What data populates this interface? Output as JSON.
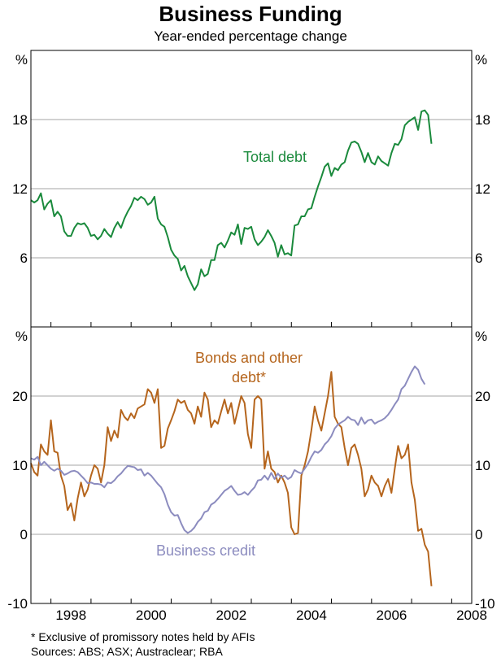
{
  "chart_data": {
    "type": "line",
    "title": "Business Funding",
    "subtitle": "Year-ended percentage change",
    "unit_label": "%",
    "x_ticks": [
      "1998",
      "2000",
      "2002",
      "2004",
      "2006",
      "2008"
    ],
    "colors": {
      "total_debt": "#1a8a3c",
      "bonds": "#b5651d",
      "business_credit": "#8c8cbf",
      "grid": "#a6a6a6",
      "axis": "#000000"
    },
    "panels": [
      {
        "name": "top",
        "ylim": [
          0,
          24
        ],
        "yticks": [
          6,
          12,
          18
        ],
        "series": [
          {
            "name": "Total debt",
            "key": "total_debt",
            "x_start": 1997.5,
            "step": 0.0833,
            "values": [
              11.0,
              10.8,
              11.0,
              11.6,
              10.2,
              10.7,
              11.0,
              9.6,
              10.0,
              9.6,
              8.3,
              7.9,
              7.9,
              8.6,
              9.0,
              8.9,
              9.0,
              8.6,
              7.9,
              8.0,
              7.6,
              7.9,
              8.5,
              8.1,
              7.8,
              8.6,
              9.1,
              8.6,
              9.4,
              10.0,
              10.5,
              11.2,
              11.0,
              11.3,
              11.1,
              10.6,
              10.8,
              11.3,
              9.4,
              8.9,
              8.7,
              7.8,
              6.7,
              6.2,
              5.9,
              4.9,
              5.3,
              4.4,
              3.8,
              3.2,
              3.7,
              5.0,
              4.4,
              4.6,
              5.8,
              5.8,
              7.1,
              7.3,
              6.9,
              7.5,
              8.2,
              8.0,
              8.9,
              7.2,
              8.6,
              8.5,
              8.7,
              7.6,
              7.1,
              7.4,
              7.8,
              8.4,
              7.9,
              7.3,
              6.1,
              7.1,
              6.3,
              6.4,
              6.2,
              8.8,
              8.9,
              9.6,
              9.6,
              10.2,
              10.3,
              11.3,
              12.2,
              13.0,
              13.9,
              14.2,
              13.1,
              13.8,
              13.6,
              14.1,
              14.3,
              15.3,
              16.0,
              16.1,
              15.9,
              15.2,
              14.3,
              15.1,
              14.3,
              14.1,
              14.8,
              14.4,
              14.2,
              14.0,
              15.1,
              15.9,
              15.8,
              16.3,
              17.5,
              17.8,
              18.0,
              18.2,
              17.1,
              18.7,
              18.8,
              18.4,
              15.9
            ]
          }
        ],
        "labels": [
          {
            "text": "Total debt",
            "series": "total_debt"
          }
        ]
      },
      {
        "name": "bottom",
        "ylim": [
          -10,
          30
        ],
        "yticks": [
          -10,
          0,
          10,
          20
        ],
        "series": [
          {
            "name": "Bonds and other debt*",
            "key": "bonds",
            "x_start": 1997.5,
            "step": 0.0833,
            "values": [
              10.3,
              9.0,
              8.5,
              13.0,
              12.0,
              11.5,
              16.5,
              12.0,
              11.8,
              8.5,
              7.0,
              3.5,
              4.5,
              2.0,
              5.2,
              7.5,
              5.5,
              6.5,
              8.5,
              10.0,
              9.5,
              7.5,
              10.0,
              15.5,
              13.5,
              15.0,
              14.0,
              18.0,
              17.0,
              16.5,
              17.5,
              16.8,
              18.2,
              18.5,
              18.8,
              21.0,
              20.5,
              19.0,
              21.0,
              12.5,
              12.8,
              15.3,
              16.5,
              17.8,
              19.5,
              19.0,
              19.3,
              18.0,
              17.5,
              16.0,
              18.5,
              17.0,
              20.5,
              19.5,
              15.5,
              16.5,
              16.0,
              17.8,
              19.5,
              17.5,
              19.0,
              16.0,
              18.0,
              20.0,
              19.0,
              14.5,
              12.5,
              19.5,
              20.0,
              19.5,
              9.5,
              12.0,
              9.5,
              9.0,
              7.5,
              8.5,
              7.5,
              6.0,
              1.0,
              0.0,
              0.2,
              8.5,
              10.0,
              12.0,
              15.0,
              18.5,
              16.5,
              15.0,
              17.5,
              20.0,
              23.5,
              17.0,
              16.0,
              15.5,
              12.5,
              10.0,
              12.5,
              13.0,
              11.5,
              9.5,
              5.5,
              6.5,
              8.5,
              7.5,
              7.0,
              5.5,
              7.0,
              8.0,
              6.0,
              9.5,
              12.8,
              11.0,
              11.5,
              13.0,
              7.5,
              5.0,
              0.5,
              0.8,
              -1.5,
              -2.5,
              -7.5
            ]
          },
          {
            "name": "Business credit",
            "key": "business_credit",
            "x_start": 1997.5,
            "step": 0.0833,
            "values": [
              11.0,
              10.8,
              11.2,
              10.0,
              10.5,
              10.0,
              9.5,
              9.2,
              9.5,
              9.2,
              8.6,
              8.8,
              9.1,
              9.2,
              9.0,
              8.5,
              8.0,
              7.4,
              7.5,
              7.3,
              7.3,
              7.2,
              6.8,
              7.5,
              7.4,
              7.8,
              8.4,
              8.8,
              9.4,
              9.9,
              9.8,
              9.7,
              9.3,
              9.4,
              8.5,
              8.9,
              8.5,
              7.9,
              7.3,
              6.8,
              5.8,
              4.3,
              3.2,
              2.7,
              2.8,
              1.6,
              0.6,
              0.2,
              0.5,
              1.0,
              1.8,
              2.3,
              3.2,
              3.4,
              4.3,
              4.6,
              5.1,
              5.7,
              6.3,
              6.6,
              7.0,
              6.3,
              5.7,
              5.8,
              6.1,
              5.7,
              6.3,
              6.8,
              7.8,
              7.9,
              8.5,
              7.9,
              8.9,
              8.0,
              8.8,
              8.2,
              8.5,
              8.0,
              8.3,
              9.3,
              9.0,
              8.8,
              9.5,
              10.2,
              11.2,
              12.0,
              11.8,
              12.2,
              13.0,
              13.5,
              14.2,
              15.3,
              15.9,
              16.2,
              16.5,
              17.0,
              16.6,
              16.5,
              15.8,
              16.9,
              16.0,
              16.5,
              16.6,
              16.0,
              16.3,
              16.5,
              16.8,
              17.3,
              18.0,
              18.8,
              19.5,
              21.0,
              21.5,
              22.5,
              23.5,
              24.3,
              23.8,
              22.5,
              21.7
            ]
          }
        ],
        "labels": [
          {
            "text": "Bonds and other",
            "series": "bonds"
          },
          {
            "text": "debt*",
            "series": "bonds"
          },
          {
            "text": "Business credit",
            "series": "business_credit"
          }
        ]
      }
    ]
  },
  "footnotes": {
    "note1": "*    Exclusive of promissory notes held by AFIs",
    "sources": "Sources: ABS; ASX; Austraclear; RBA"
  }
}
